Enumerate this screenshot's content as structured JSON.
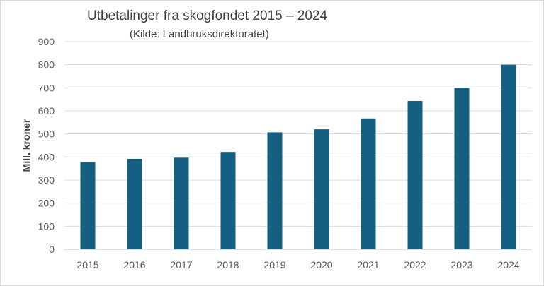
{
  "chart_data": {
    "type": "bar",
    "title": "Utbetalinger fra skogfondet 2015 – 2024",
    "subtitle": "(Kilde: Landbruksdirektoratet)",
    "xlabel": "",
    "ylabel": "Mill. kroner",
    "categories": [
      "2015",
      "2016",
      "2017",
      "2018",
      "2019",
      "2020",
      "2021",
      "2022",
      "2023",
      "2024"
    ],
    "values": [
      378,
      392,
      397,
      422,
      507,
      520,
      567,
      643,
      700,
      800
    ],
    "ylim": [
      0,
      900
    ],
    "yticks": [
      "0",
      "100",
      "200",
      "300",
      "400",
      "500",
      "600",
      "700",
      "800",
      "900"
    ],
    "bar_color": "#156082",
    "grid": true,
    "legend": "none"
  }
}
